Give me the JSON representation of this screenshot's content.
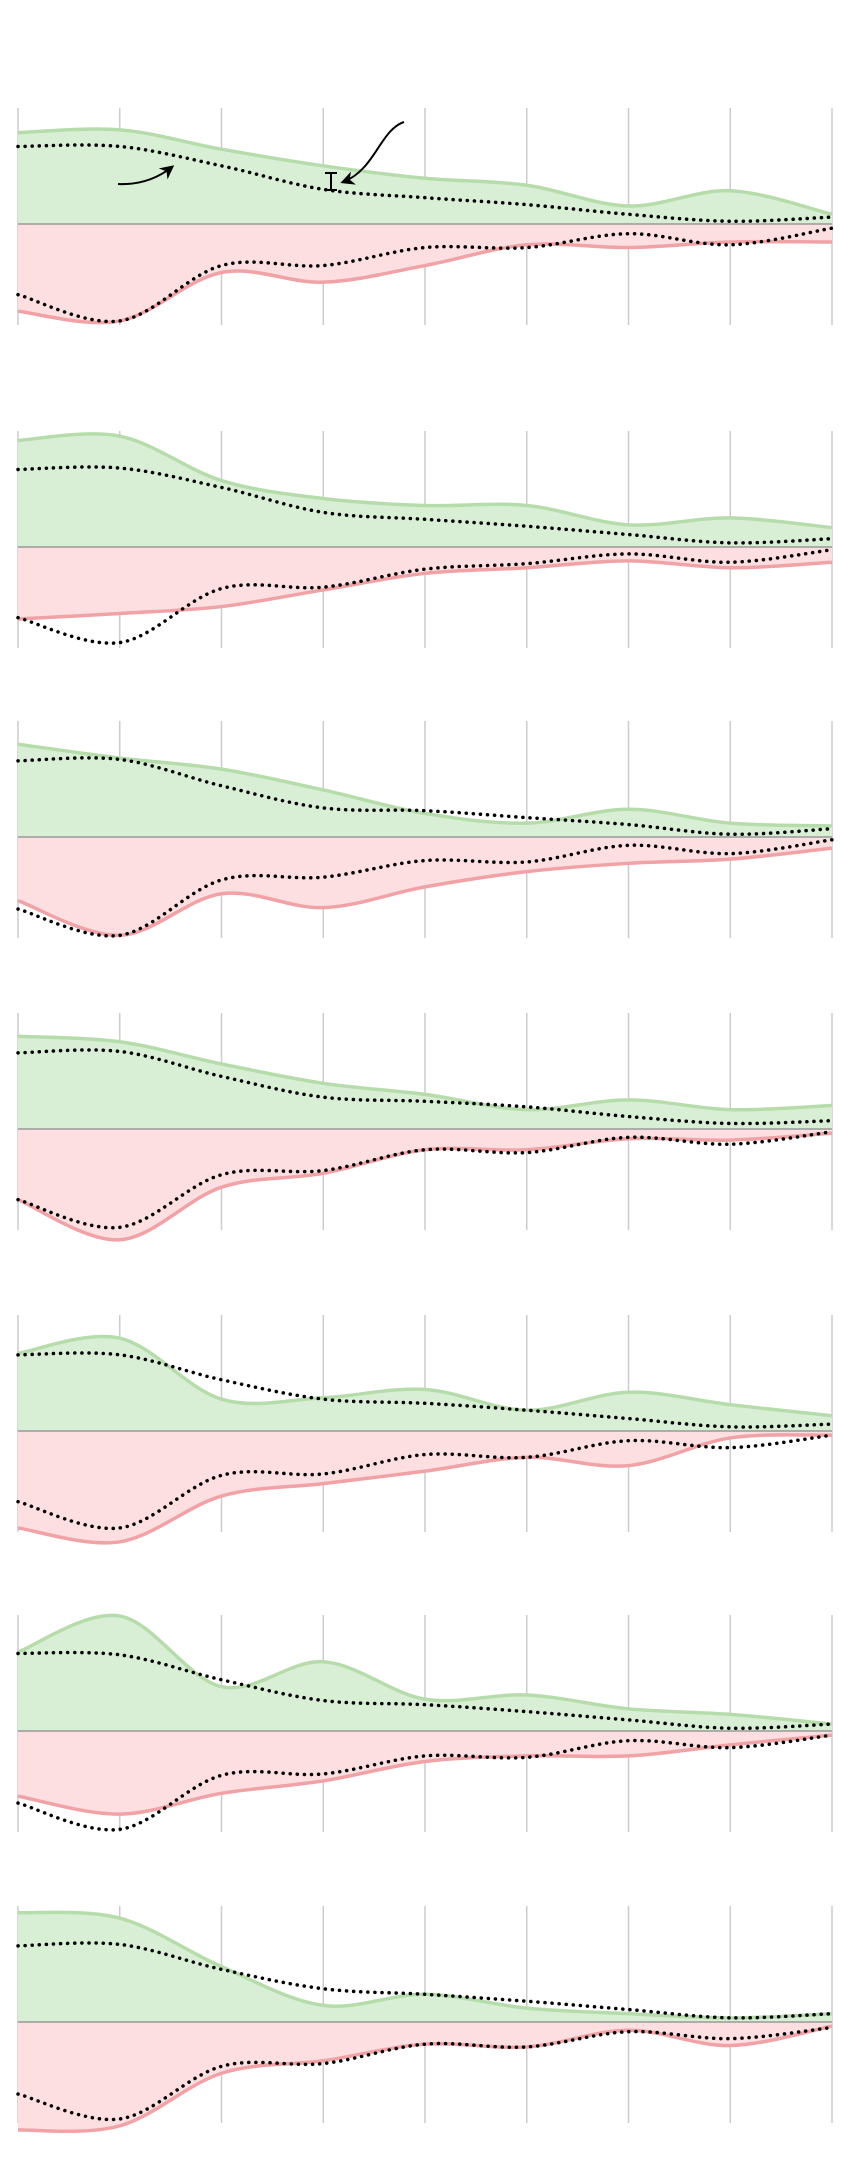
{
  "chart_data": {
    "type": "area",
    "title": "",
    "xlabel": "",
    "ylabel": "",
    "x": [
      0,
      1,
      2,
      3,
      4,
      5,
      6,
      7,
      8
    ],
    "ylim": [
      -8.4,
      8.4
    ],
    "grid": "vertical",
    "legend": "none",
    "colors": {
      "positive_fill": "#d8efd5",
      "positive_line": "#b7dcab",
      "negative_fill": "#fddfe1",
      "negative_line": "#f0a2a6",
      "baseline": "#999999",
      "grid": "#cccccc",
      "dotted": "#000000"
    },
    "panels": [
      {
        "positive": [
          6.6,
          6.8,
          5.4,
          4.2,
          3.3,
          2.8,
          1.3,
          2.4,
          0.7
        ],
        "positive_dotted": [
          5.6,
          5.6,
          4.2,
          2.5,
          1.9,
          1.4,
          0.7,
          0.2,
          0.5
        ],
        "negative": [
          -6.3,
          -7.0,
          -3.5,
          -4.2,
          -3.0,
          -1.5,
          -1.7,
          -1.3,
          -1.3
        ],
        "negative_dotted": [
          -5.1,
          -7.0,
          -3.0,
          -3.0,
          -1.7,
          -1.7,
          -0.7,
          -1.5,
          -0.3
        ],
        "annotated": true
      },
      {
        "positive": [
          7.7,
          8.0,
          4.8,
          3.5,
          3.0,
          3.0,
          1.6,
          2.1,
          1.4
        ],
        "positive_dotted": [
          5.6,
          5.7,
          4.3,
          2.5,
          2.0,
          1.5,
          0.9,
          0.3,
          0.6
        ],
        "negative": [
          -5.2,
          -4.8,
          -4.3,
          -3.1,
          -1.9,
          -1.5,
          -1.0,
          -1.5,
          -1.1
        ],
        "negative_dotted": [
          -5.1,
          -6.9,
          -3.0,
          -2.9,
          -1.6,
          -1.2,
          -0.5,
          -1.1,
          -0.2
        ]
      },
      {
        "positive": [
          6.7,
          5.7,
          4.9,
          3.4,
          1.7,
          1.0,
          2.0,
          1.0,
          0.8
        ],
        "positive_dotted": [
          5.5,
          5.6,
          3.7,
          2.1,
          1.9,
          1.4,
          0.9,
          0.2,
          0.6
        ],
        "negative": [
          -4.6,
          -7.1,
          -4.1,
          -5.1,
          -3.6,
          -2.5,
          -1.9,
          -1.6,
          -0.8
        ],
        "negative_dotted": [
          -5.2,
          -7.1,
          -3.1,
          -2.9,
          -1.7,
          -1.8,
          -0.6,
          -1.2,
          -0.2
        ]
      },
      {
        "positive": [
          6.7,
          6.3,
          4.7,
          3.3,
          2.5,
          1.4,
          2.1,
          1.4,
          1.7
        ],
        "positive_dotted": [
          5.5,
          5.6,
          3.8,
          2.3,
          2.0,
          1.6,
          0.9,
          0.4,
          0.6
        ],
        "negative": [
          -5.1,
          -8.0,
          -4.2,
          -3.2,
          -1.5,
          -1.5,
          -0.7,
          -0.8,
          -0.3
        ],
        "negative_dotted": [
          -5.1,
          -7.1,
          -3.3,
          -3.0,
          -1.5,
          -1.7,
          -0.6,
          -1.1,
          -0.2
        ]
      },
      {
        "positive": [
          5.6,
          6.7,
          2.3,
          2.4,
          3.0,
          1.5,
          2.8,
          1.9,
          1.1
        ],
        "positive_dotted": [
          5.5,
          5.5,
          3.7,
          2.3,
          2.0,
          1.5,
          0.9,
          0.3,
          0.5
        ],
        "negative": [
          -7.0,
          -8.0,
          -4.7,
          -3.8,
          -2.9,
          -1.9,
          -2.5,
          -0.5,
          -0.3
        ],
        "negative_dotted": [
          -5.1,
          -7.0,
          -3.2,
          -3.1,
          -1.7,
          -1.9,
          -0.7,
          -1.2,
          -0.3
        ]
      },
      {
        "positive": [
          5.7,
          8.3,
          3.2,
          5.0,
          2.3,
          2.6,
          1.6,
          1.2,
          0.5
        ],
        "positive_dotted": [
          5.6,
          5.5,
          3.7,
          2.2,
          1.9,
          1.4,
          0.8,
          0.2,
          0.5
        ],
        "negative": [
          -4.7,
          -6.0,
          -4.5,
          -3.6,
          -2.2,
          -1.8,
          -1.8,
          -1.0,
          -0.3
        ],
        "negative_dotted": [
          -5.2,
          -7.1,
          -3.2,
          -3.1,
          -1.8,
          -1.9,
          -0.7,
          -1.2,
          -0.3
        ]
      },
      {
        "positive": [
          7.9,
          7.5,
          4.0,
          1.2,
          2.0,
          1.0,
          0.6,
          0.3,
          0.6
        ],
        "positive_dotted": [
          5.5,
          5.6,
          3.8,
          2.4,
          2.0,
          1.5,
          0.9,
          0.3,
          0.6
        ],
        "negative": [
          -7.8,
          -7.5,
          -3.7,
          -2.8,
          -1.6,
          -1.8,
          -0.6,
          -1.7,
          -0.3
        ],
        "negative_dotted": [
          -5.2,
          -7.0,
          -3.2,
          -3.0,
          -1.6,
          -1.8,
          -0.7,
          -1.2,
          -0.4
        ]
      }
    ]
  }
}
